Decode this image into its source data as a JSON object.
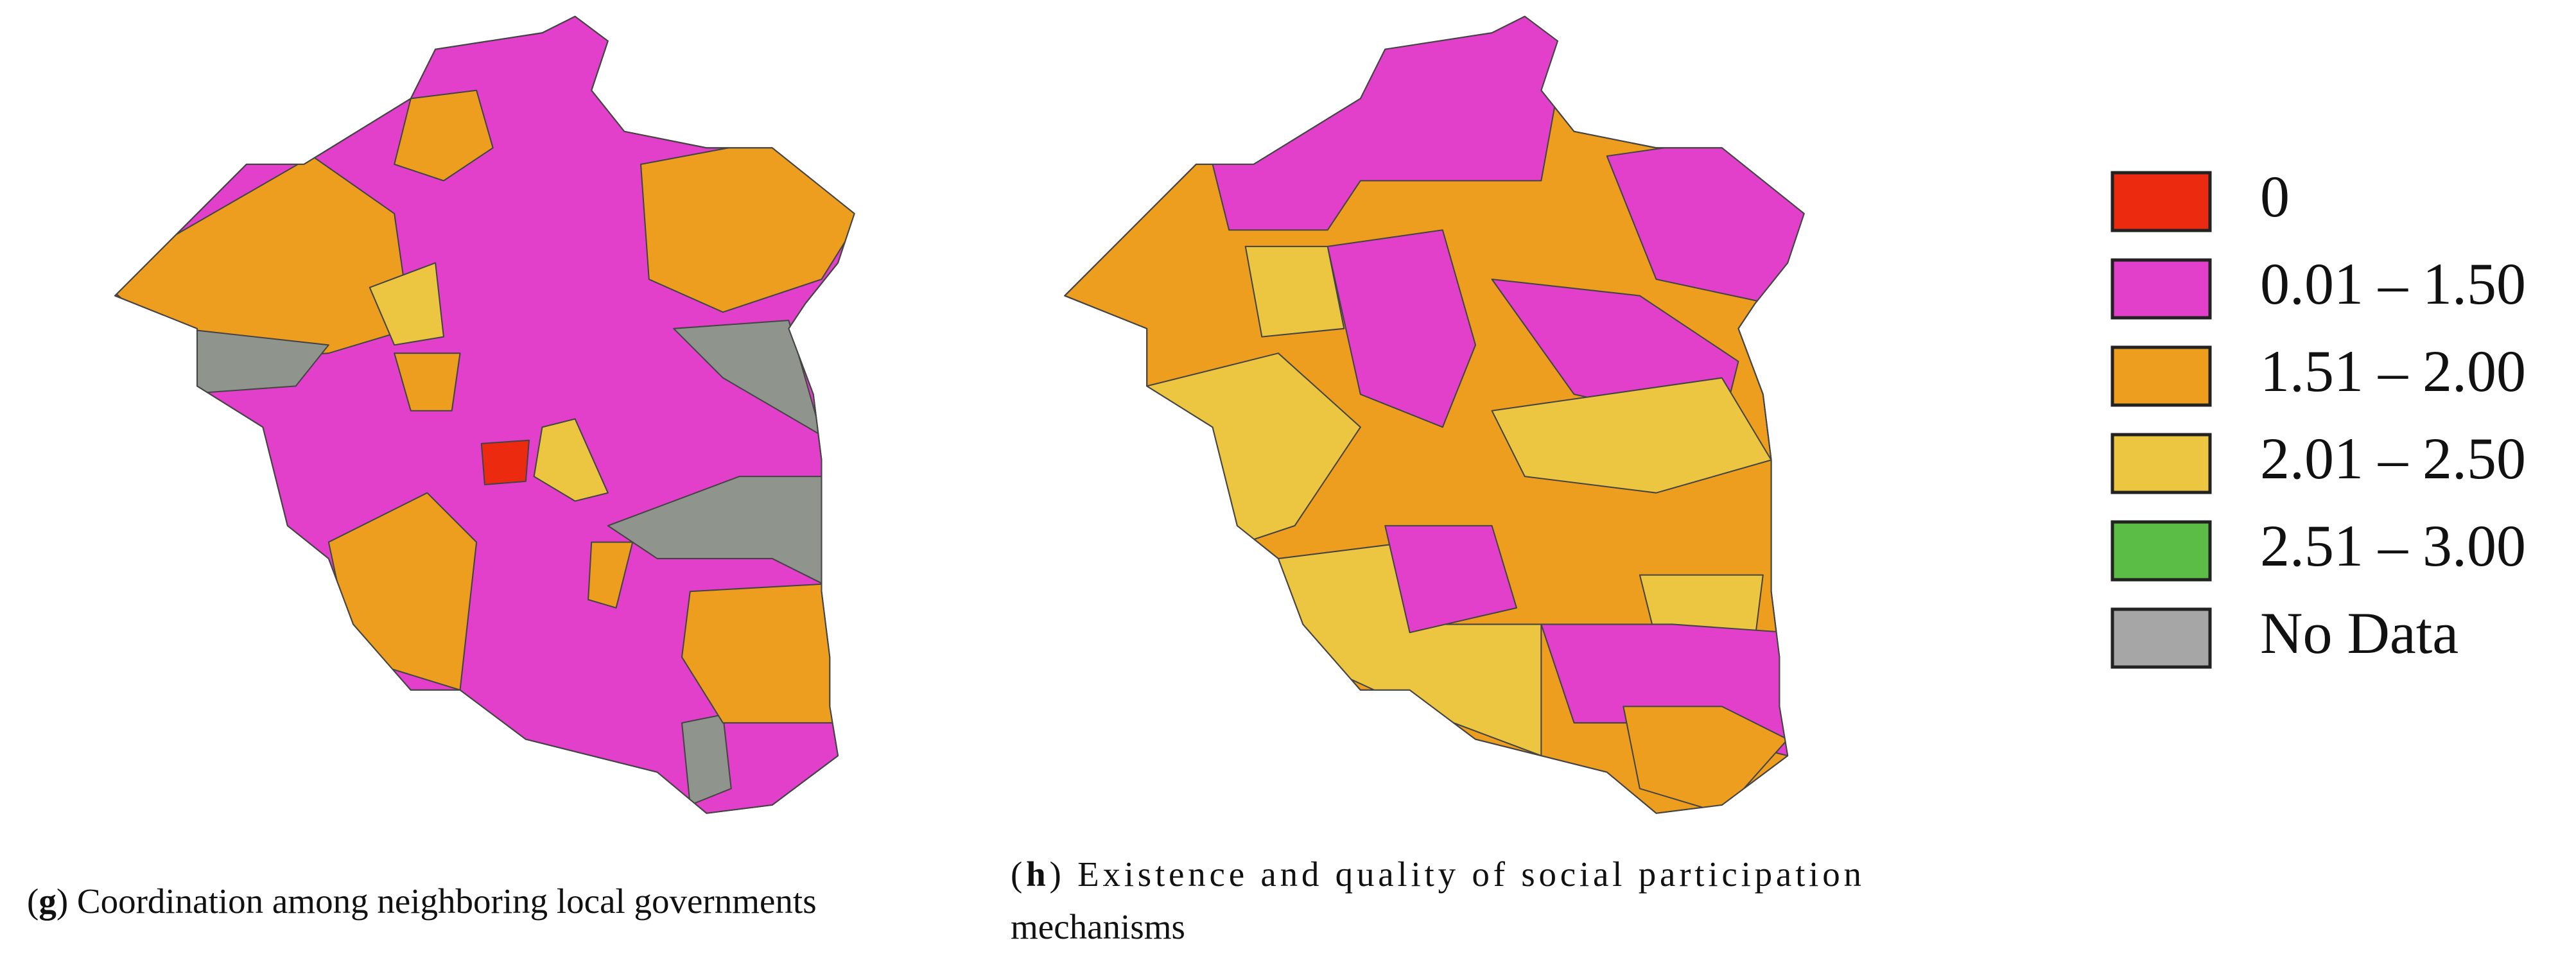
{
  "legend": {
    "items": [
      {
        "label": "0",
        "color": "#ec2a10"
      },
      {
        "label": "0.01 – 1.50",
        "color": "#e23fcb"
      },
      {
        "label": "1.51 – 2.00",
        "color": "#ee9e1e"
      },
      {
        "label": "2.01 – 2.50",
        "color": "#ecc641"
      },
      {
        "label": "2.51 – 3.00",
        "color": "#5bbd46"
      },
      {
        "label": "No Data",
        "color": "#a6a6a6"
      }
    ]
  },
  "captions": [
    {
      "open": "(",
      "letter": "g",
      "text": ") Coordination among neighboring local governments"
    },
    {
      "open": "(",
      "letter": "h",
      "text": ") Existence and quality of social participation",
      "line2": "mechanisms"
    }
  ]
}
